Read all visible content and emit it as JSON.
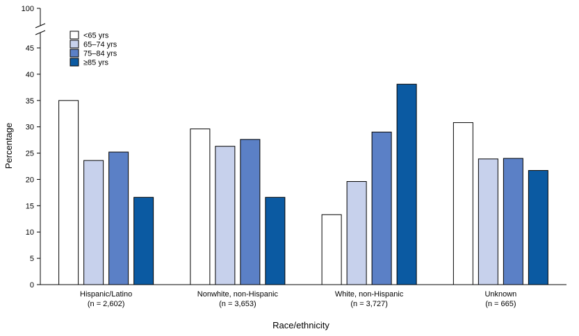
{
  "chart_data": {
    "type": "bar",
    "title": "",
    "xlabel": "Race/ethnicity",
    "ylabel": "Percentage",
    "ylim": [
      0,
      45
    ],
    "ybreak": true,
    "ybreak_top_tick": 100,
    "yticks": [
      0,
      5,
      10,
      15,
      20,
      25,
      30,
      35,
      40,
      45
    ],
    "categories": [
      {
        "name": "Hispanic/Latino",
        "n": "(n = 2,602)"
      },
      {
        "name": "Nonwhite, non-Hispanic",
        "n": "(n = 3,653)"
      },
      {
        "name": "White, non-Hispanic",
        "n": "(n = 3,727)"
      },
      {
        "name": "Unknown",
        "n": "(n = 665)"
      }
    ],
    "series": [
      {
        "name": "<65 yrs",
        "color": "#ffffff",
        "values": [
          35.0,
          29.6,
          13.3,
          30.8
        ]
      },
      {
        "name": "65–74 yrs",
        "color": "#c7d1ec",
        "values": [
          23.6,
          26.3,
          19.6,
          23.9
        ]
      },
      {
        "name": "75–84 yrs",
        "color": "#5b80c6",
        "values": [
          25.2,
          27.6,
          29.0,
          24.0
        ]
      },
      {
        "name": "≥85 yrs",
        "color": "#0b5aa2",
        "values": [
          16.6,
          16.6,
          38.1,
          21.7
        ]
      }
    ],
    "legend_position": "top-left",
    "grid": false
  }
}
